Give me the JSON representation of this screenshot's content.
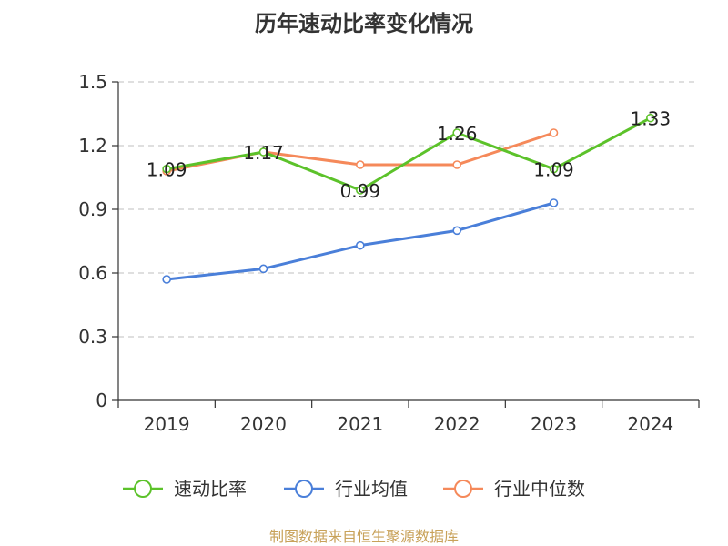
{
  "chart_data": {
    "type": "line",
    "title": "历年速动比率变化情况",
    "categories": [
      "2019",
      "2020",
      "2021",
      "2022",
      "2023",
      "2024"
    ],
    "y_ticks": [
      "0",
      "0.3",
      "0.6",
      "0.9",
      "1.2",
      "1.5"
    ],
    "ylim": [
      0,
      1.5
    ],
    "grid": true,
    "legend_position": "bottom",
    "series": [
      {
        "name": "速动比率",
        "color": "#5cc22a",
        "values": [
          1.09,
          1.17,
          0.99,
          1.26,
          1.09,
          1.33
        ],
        "labels": [
          "1.09",
          "1.17",
          "0.99",
          "1.26",
          "1.09",
          "1.33"
        ]
      },
      {
        "name": "行业均值",
        "color": "#4a7fd9",
        "values": [
          0.57,
          0.62,
          0.73,
          0.8,
          0.93,
          null
        ]
      },
      {
        "name": "行业中位数",
        "color": "#f5895a",
        "values": [
          1.08,
          1.17,
          1.11,
          1.11,
          1.26,
          null
        ]
      }
    ],
    "source": "制图数据来自恒生聚源数据库"
  }
}
